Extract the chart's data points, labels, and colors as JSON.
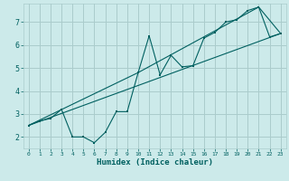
{
  "xlabel": "Humidex (Indice chaleur)",
  "bg_color": "#cceaea",
  "grid_color": "#aacccc",
  "line_color": "#006060",
  "xlim": [
    -0.5,
    23.5
  ],
  "ylim": [
    1.5,
    7.8
  ],
  "xticks": [
    0,
    1,
    2,
    3,
    4,
    5,
    6,
    7,
    8,
    9,
    10,
    11,
    12,
    13,
    14,
    15,
    16,
    17,
    18,
    19,
    20,
    21,
    22,
    23
  ],
  "yticks": [
    2,
    3,
    4,
    5,
    6,
    7
  ],
  "line1_x": [
    0,
    1,
    2,
    3,
    4,
    5,
    6,
    7,
    8,
    9,
    10,
    11,
    12,
    13,
    14,
    15,
    16,
    17,
    18,
    19,
    20,
    21,
    22,
    23
  ],
  "line1_y": [
    2.5,
    2.7,
    2.8,
    3.2,
    2.0,
    2.0,
    1.75,
    2.2,
    3.1,
    3.1,
    4.8,
    6.4,
    4.7,
    5.55,
    5.05,
    5.1,
    6.3,
    6.55,
    7.0,
    7.1,
    7.5,
    7.65,
    6.35,
    6.5
  ],
  "line2_x": [
    0,
    23
  ],
  "line2_y": [
    2.5,
    6.5
  ],
  "line3_x": [
    0,
    10,
    21,
    23
  ],
  "line3_y": [
    2.5,
    4.8,
    7.65,
    6.5
  ]
}
